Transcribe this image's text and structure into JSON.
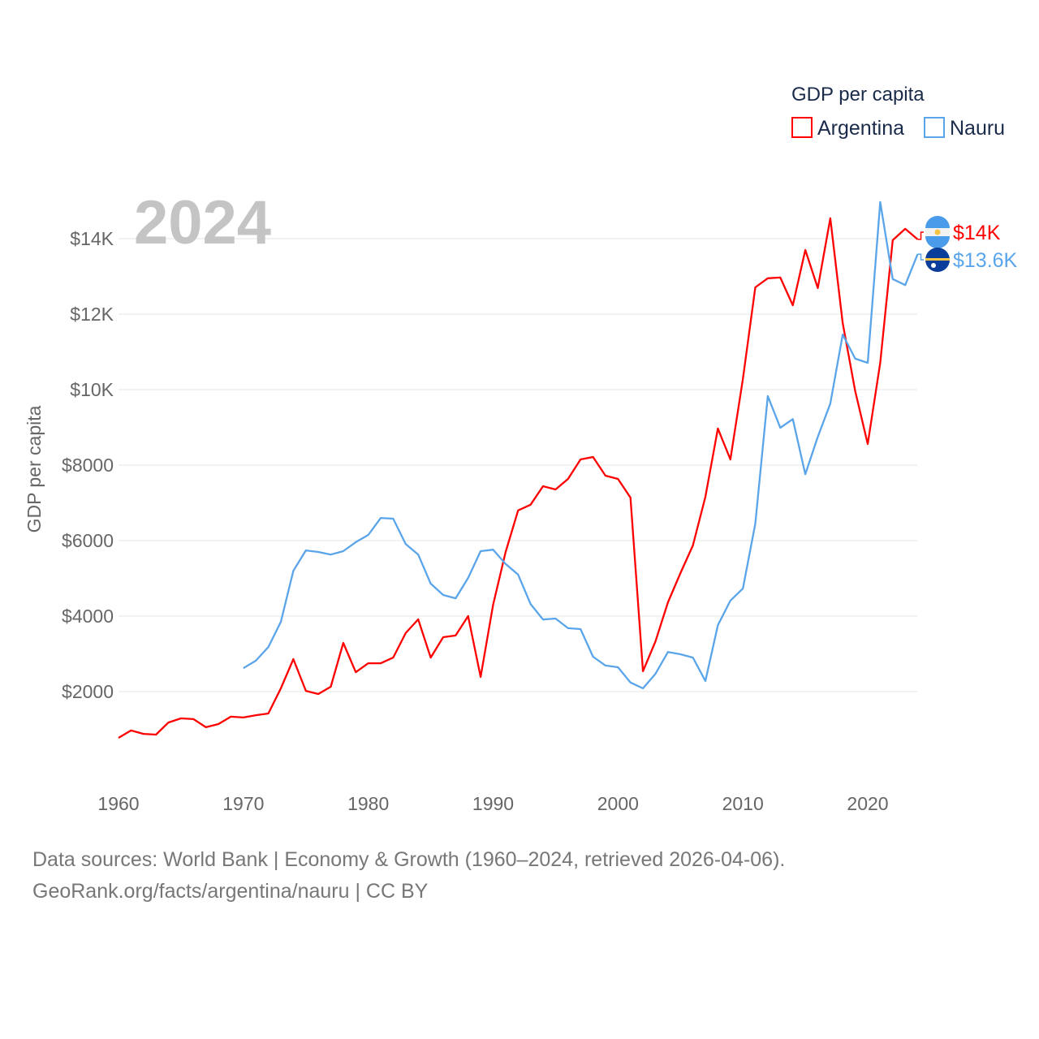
{
  "chart_data": {
    "type": "line",
    "big_year_label": "2024",
    "ylabel": "GDP per capita",
    "legend": {
      "title": "GDP per capita",
      "placement": "top-right"
    },
    "xlim": [
      1960,
      2024
    ],
    "ylim": [
      0,
      15000
    ],
    "x_ticks": [
      1960,
      1970,
      1980,
      1990,
      2000,
      2010,
      2020
    ],
    "x_tick_labels": [
      "1960",
      "1970",
      "1980",
      "1990",
      "2000",
      "2010",
      "2020"
    ],
    "y_ticks": [
      2000,
      4000,
      6000,
      8000,
      10000,
      12000,
      14000
    ],
    "y_tick_labels": [
      "$2000",
      "$4000",
      "$6000",
      "$8000",
      "$10K",
      "$12K",
      "$14K"
    ],
    "grid": true,
    "series": [
      {
        "name": "Argentina",
        "color": "#ff0000",
        "flag": "argentina-flag",
        "end_label": "$14K",
        "start_year": 1960,
        "values": [
          775,
          970,
          880,
          860,
          1180,
          1290,
          1270,
          1055,
          1140,
          1335,
          1315,
          1375,
          1420,
          2085,
          2860,
          2020,
          1935,
          2130,
          3290,
          2515,
          2750,
          2750,
          2900,
          3550,
          3915,
          2900,
          3440,
          3485,
          4000,
          2390,
          4300,
          5700,
          6800,
          6950,
          7440,
          7355,
          7635,
          8150,
          8215,
          7720,
          7635,
          7140,
          2540,
          3330,
          4365,
          5140,
          5870,
          7160,
          8970,
          8150,
          10280,
          12710,
          12950,
          12970,
          12235,
          13700,
          12690,
          14540,
          11760,
          9960,
          8560,
          10710,
          13960,
          14260,
          13980
        ]
      },
      {
        "name": "Nauru",
        "color": "#5aa5ea",
        "flag": "nauru-flag",
        "end_label": "$13.6K",
        "start_year": 1970,
        "values": [
          2620,
          2820,
          3180,
          3850,
          5200,
          5740,
          5700,
          5630,
          5720,
          5960,
          6150,
          6600,
          6580,
          5910,
          5630,
          4860,
          4560,
          4470,
          5010,
          5720,
          5760,
          5380,
          5100,
          4320,
          3910,
          3935,
          3680,
          3655,
          2925,
          2690,
          2645,
          2240,
          2085,
          2470,
          3050,
          2990,
          2900,
          2280,
          3760,
          4410,
          4730,
          6450,
          9830,
          8990,
          9220,
          7760,
          8750,
          9630,
          11460,
          10820,
          10710,
          14970,
          12930,
          12770,
          13590
        ]
      }
    ]
  },
  "footer": {
    "line1": "Data sources: World Bank | Economy & Growth (1960–2024, retrieved 2026-04-06).",
    "line2": "GeoRank.org/facts/argentina/nauru | CC BY"
  }
}
